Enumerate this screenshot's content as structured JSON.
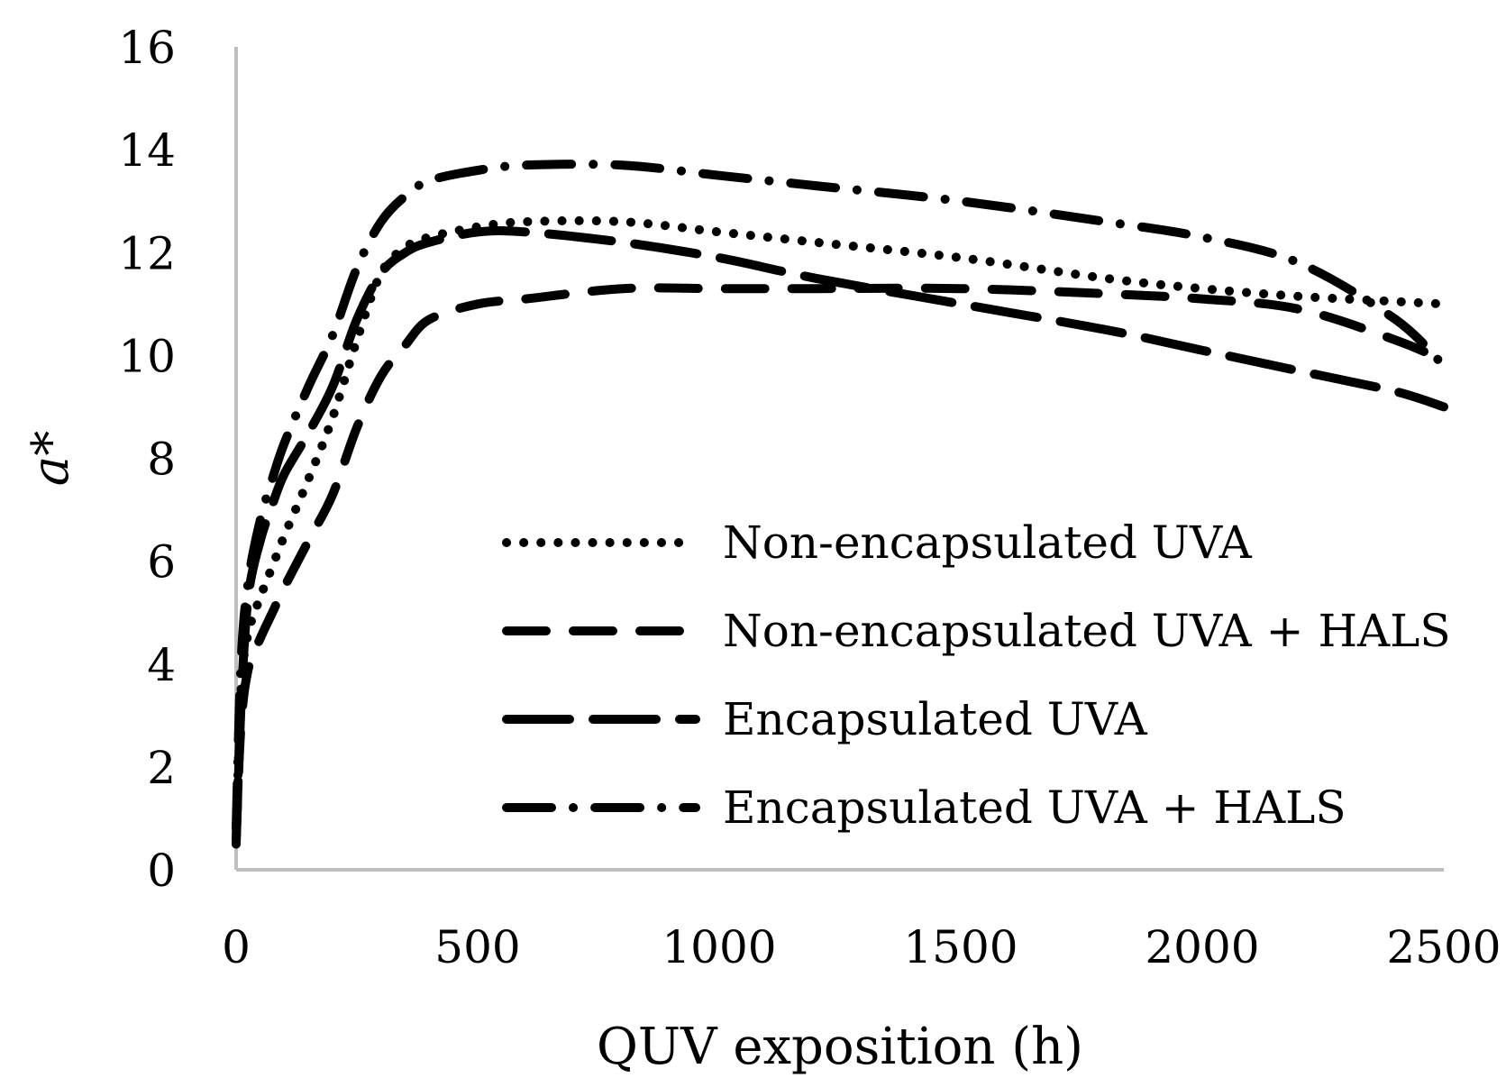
{
  "chart_data": {
    "type": "line",
    "title": "",
    "xlabel": "QUV exposition (h)",
    "ylabel": "a*",
    "xlim": [
      0,
      2500
    ],
    "ylim": [
      0,
      16
    ],
    "xticks": [
      "0",
      "500",
      "1000",
      "1500",
      "2000",
      "2500"
    ],
    "yticks": [
      "0",
      "2",
      "4",
      "6",
      "8",
      "10",
      "12",
      "14",
      "16"
    ],
    "grid": false,
    "legend_position": "center-right",
    "line_color": "#000000",
    "axis_color": "#bfbfbf",
    "series": [
      {
        "name": "Non-encapsulated UVA",
        "style": "dotted",
        "x": [
          0,
          10,
          25,
          50,
          75,
          100,
          150,
          200,
          250,
          300,
          350,
          400,
          500,
          600,
          800,
          1000,
          1200,
          1500,
          1800,
          2000,
          2200,
          2400,
          2500
        ],
        "y": [
          0.5,
          3.5,
          4.6,
          5.3,
          5.9,
          6.5,
          7.6,
          8.8,
          10.3,
          11.6,
          12.1,
          12.3,
          12.5,
          12.6,
          12.6,
          12.4,
          12.2,
          11.9,
          11.5,
          11.3,
          11.15,
          11.05,
          11.0
        ]
      },
      {
        "name": "Non-encapsulated UVA + HALS",
        "style": "dashed",
        "x": [
          0,
          10,
          25,
          50,
          75,
          100,
          150,
          200,
          250,
          300,
          350,
          400,
          500,
          600,
          800,
          1000,
          1200,
          1500,
          1800,
          2000,
          2200,
          2400,
          2500
        ],
        "y": [
          0.6,
          2.8,
          3.9,
          4.5,
          5.0,
          5.5,
          6.4,
          7.3,
          8.6,
          9.6,
          10.2,
          10.7,
          11.0,
          11.1,
          11.3,
          11.3,
          11.3,
          11.3,
          11.2,
          11.1,
          10.9,
          10.3,
          9.9
        ]
      },
      {
        "name": "Encapsulated UVA",
        "style": "long-dash",
        "x": [
          0,
          10,
          25,
          50,
          75,
          100,
          150,
          200,
          250,
          300,
          350,
          400,
          500,
          600,
          800,
          1000,
          1200,
          1500,
          1800,
          2000,
          2200,
          2400,
          2500
        ],
        "y": [
          0.5,
          3.2,
          5.3,
          6.4,
          7.1,
          7.7,
          8.5,
          9.4,
          10.7,
          11.6,
          12.0,
          12.2,
          12.4,
          12.4,
          12.2,
          11.9,
          11.5,
          11.0,
          10.5,
          10.1,
          9.7,
          9.3,
          9.0
        ]
      },
      {
        "name": "Encapsulated UVA + HALS",
        "style": "dash-dot",
        "x": [
          0,
          10,
          25,
          50,
          75,
          100,
          150,
          200,
          250,
          300,
          350,
          400,
          500,
          600,
          800,
          1000,
          1200,
          1500,
          1800,
          2000,
          2200,
          2400,
          2500
        ],
        "y": [
          0.8,
          4.0,
          5.6,
          6.8,
          7.6,
          8.3,
          9.4,
          10.4,
          11.7,
          12.6,
          13.1,
          13.4,
          13.6,
          13.7,
          13.7,
          13.5,
          13.3,
          13.0,
          12.6,
          12.3,
          11.8,
          10.7,
          9.8
        ]
      }
    ]
  }
}
